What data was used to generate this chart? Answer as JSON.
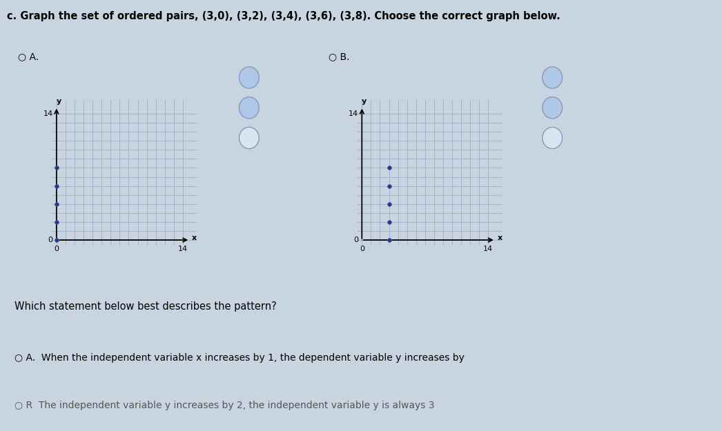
{
  "title": "c. Graph the set of ordered pairs, (3,0), (3,2), (3,4), (3,6), (3,8). Choose the correct graph below.",
  "graph_A_points_x": [
    0,
    0,
    0,
    0,
    0
  ],
  "graph_A_points_y": [
    0,
    2,
    4,
    6,
    8
  ],
  "graph_B_points_x": [
    3,
    3,
    3,
    3,
    3
  ],
  "graph_B_points_y": [
    0,
    2,
    4,
    6,
    8
  ],
  "axis_max": 14,
  "grid_color": "#8899bb",
  "grid_bg": "#e8eef6",
  "point_color": "#2a3580",
  "outer_bg": "#c8d4e0",
  "question_text": "Which statement below best describes the pattern?",
  "answer_A_radio": "A.",
  "answer_A_text": "When the independent variable x increases by 1, the dependent variable y increases by",
  "answer_B_radio": "R",
  "answer_B_text": "The independent variable y increases by 2, the independent variable y is always 3"
}
